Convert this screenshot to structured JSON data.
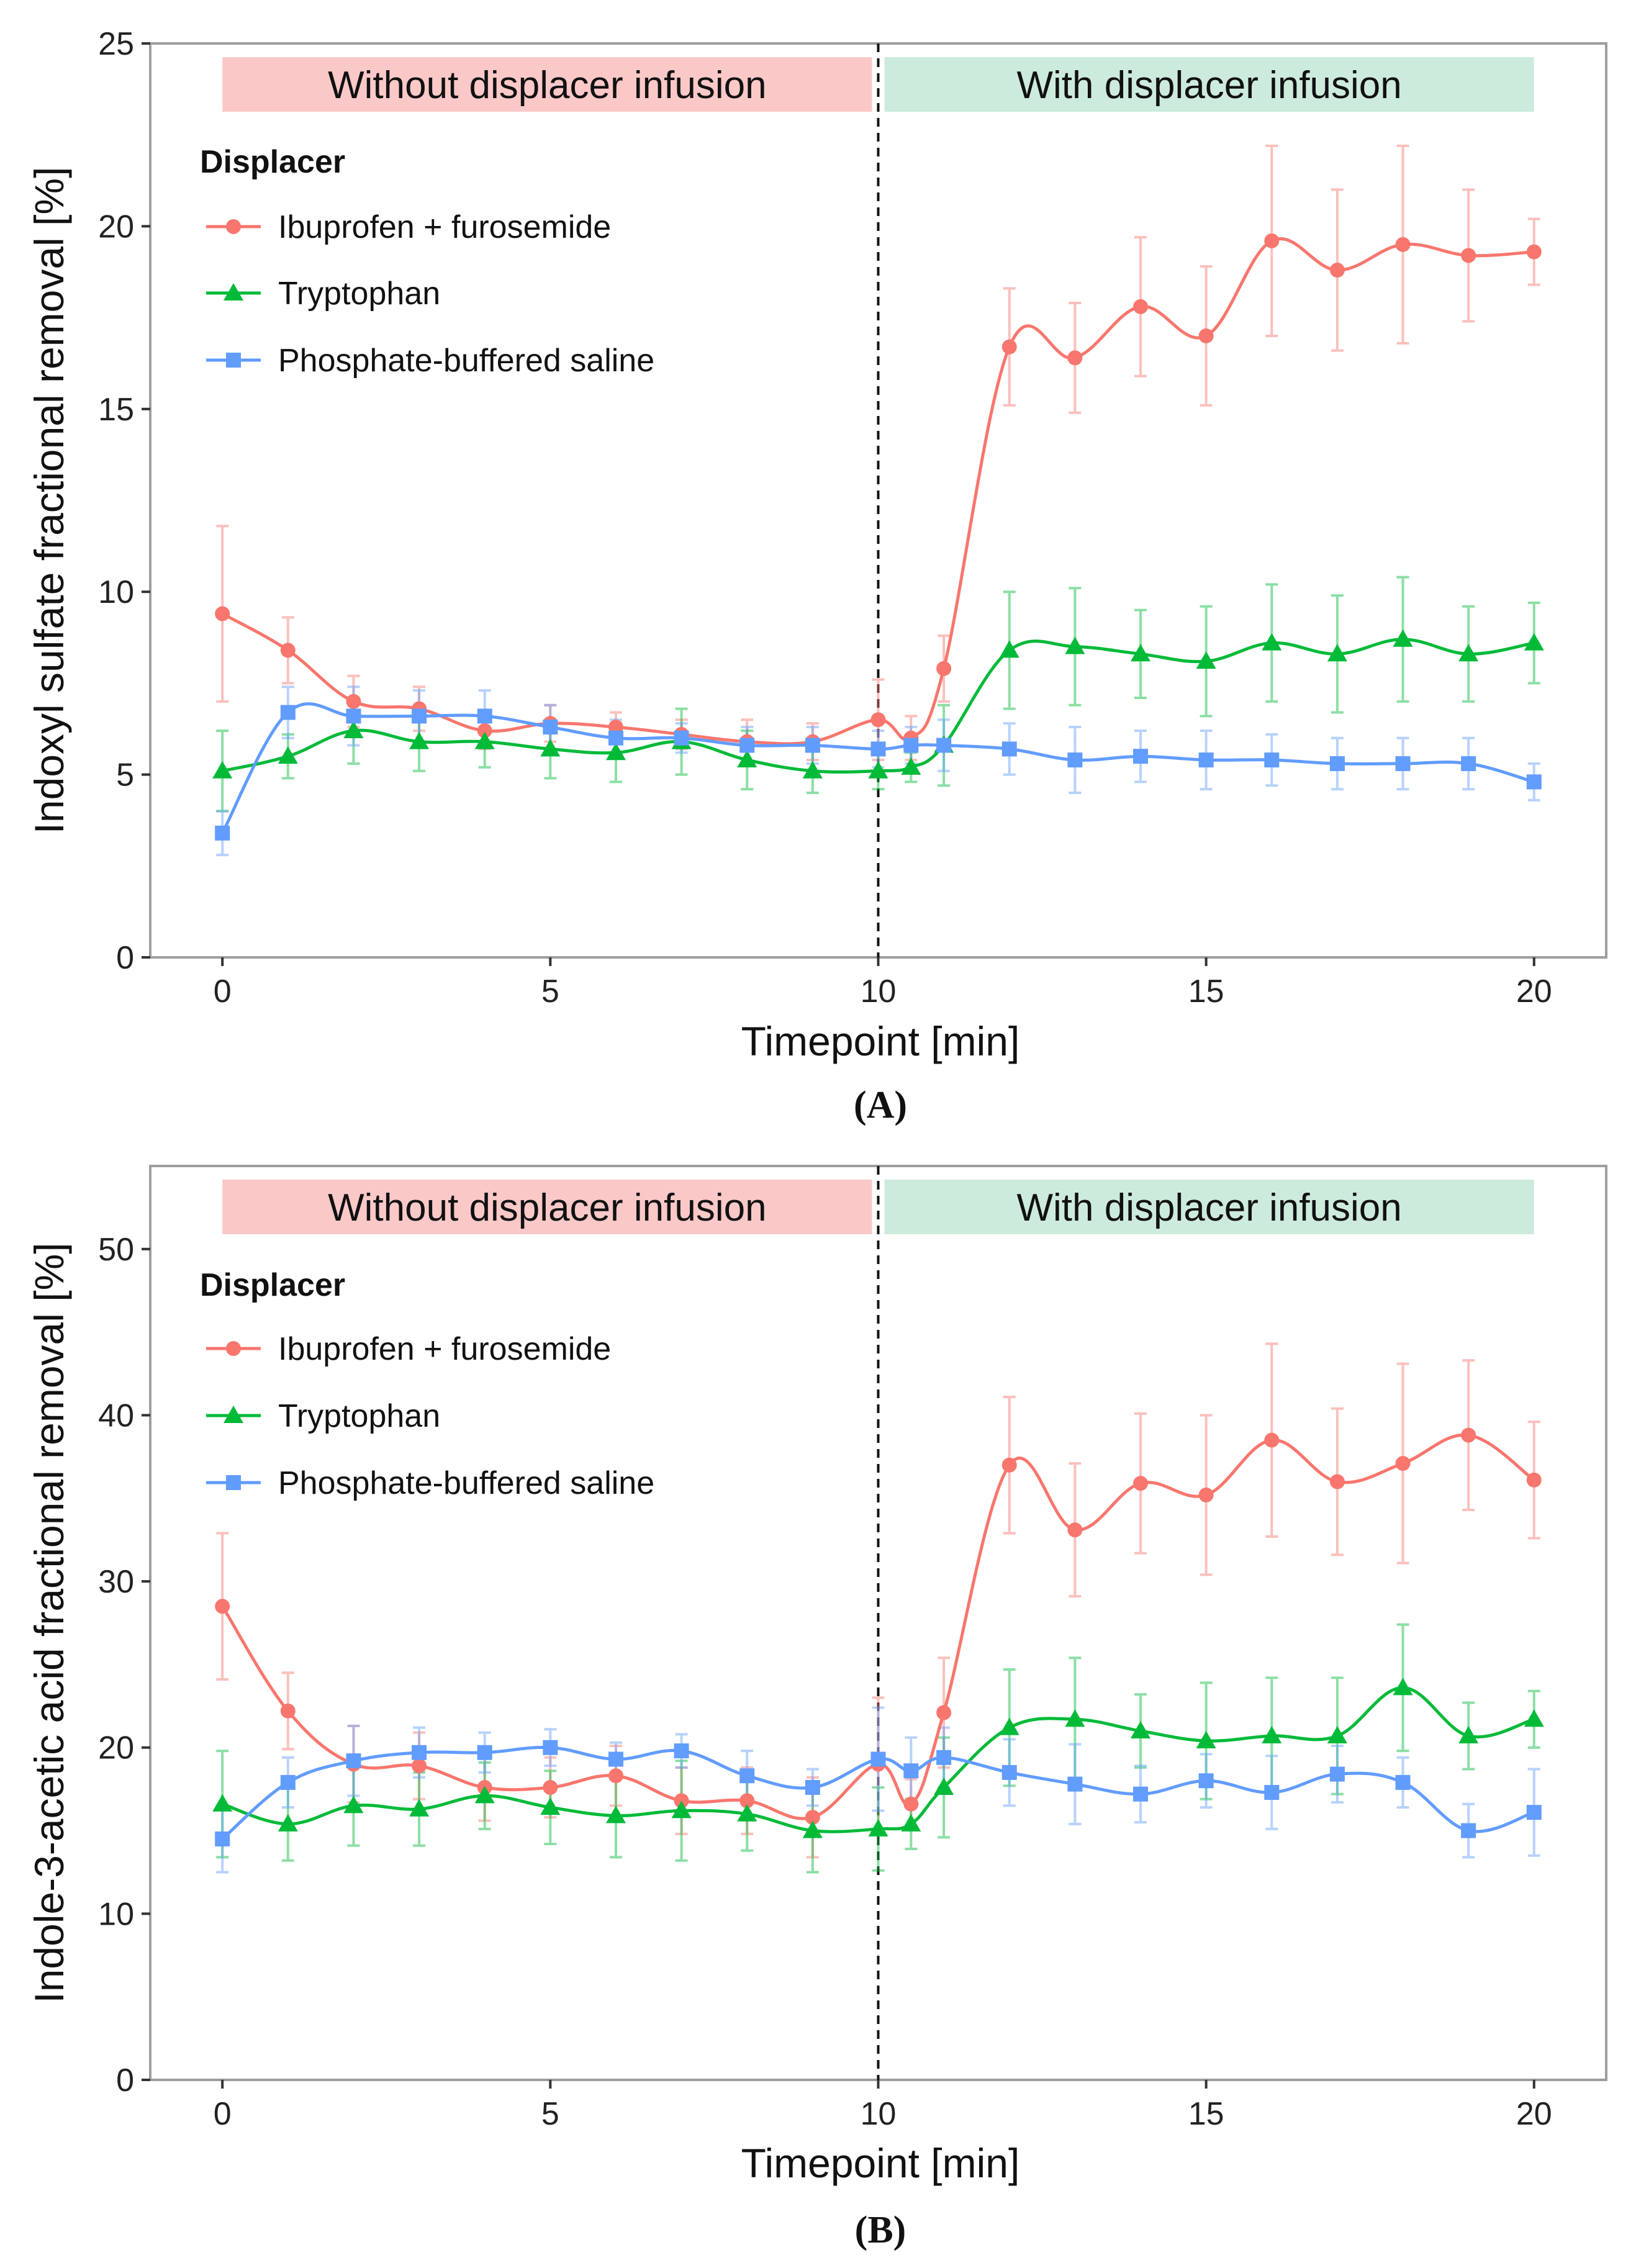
{
  "colors": {
    "ibuprofen": "#F8766D",
    "tryptophan": "#00BA38",
    "pbs": "#619CFF",
    "without_band": "#FBC8C8",
    "with_band": "#CDEBDD",
    "axis": "#333333",
    "panel_border": "#9E9E9E"
  },
  "chart_data": [
    {
      "panel": "A",
      "type": "line",
      "caption": "(A)",
      "xlabel": "Timepoint [min]",
      "ylabel": "Indoxyl sulfate fractional removal [%]",
      "xlim": [
        -1.1,
        21.1
      ],
      "ylim": [
        0,
        25
      ],
      "xticks": [
        0,
        5,
        10,
        15,
        20
      ],
      "yticks": [
        0,
        5,
        10,
        15,
        20,
        25
      ],
      "grid": false,
      "divider_x": 10,
      "bands": [
        {
          "label": "Without displacer infusion",
          "x": [
            0,
            10
          ],
          "color_key": "without_band"
        },
        {
          "label": "With displacer infusion",
          "x": [
            10,
            20
          ],
          "color_key": "with_band"
        }
      ],
      "legend": {
        "title": "Displacer",
        "position": "top-left"
      },
      "x": [
        0,
        1,
        2,
        3,
        4,
        5,
        6,
        7,
        8,
        9,
        10,
        10.5,
        11,
        12,
        13,
        14,
        15,
        16,
        17,
        18,
        19,
        20
      ],
      "series": [
        {
          "name": "Ibuprofen + furosemide",
          "marker": "circle",
          "color_key": "ibuprofen",
          "values": [
            9.4,
            8.4,
            7.0,
            6.8,
            6.2,
            6.4,
            6.3,
            6.1,
            5.9,
            5.9,
            6.5,
            6.0,
            7.9,
            16.7,
            16.4,
            17.8,
            17.0,
            19.6,
            18.8,
            19.5,
            19.2,
            19.3
          ],
          "errors": [
            2.4,
            0.9,
            0.7,
            0.6,
            0.5,
            0.5,
            0.4,
            0.4,
            0.6,
            0.5,
            1.1,
            0.6,
            0.9,
            1.6,
            1.5,
            1.9,
            1.9,
            2.6,
            2.2,
            2.7,
            1.8,
            0.9
          ]
        },
        {
          "name": "Tryptophan",
          "marker": "triangle",
          "color_key": "tryptophan",
          "values": [
            5.1,
            5.5,
            6.2,
            5.9,
            5.9,
            5.7,
            5.6,
            5.9,
            5.4,
            5.1,
            5.1,
            5.2,
            5.8,
            8.4,
            8.5,
            8.3,
            8.1,
            8.6,
            8.3,
            8.7,
            8.3,
            8.6
          ],
          "errors": [
            1.1,
            0.6,
            0.9,
            0.8,
            0.7,
            0.8,
            0.8,
            0.9,
            0.8,
            0.6,
            0.5,
            0.4,
            1.1,
            1.6,
            1.6,
            1.2,
            1.5,
            1.6,
            1.6,
            1.7,
            1.3,
            1.1
          ]
        },
        {
          "name": "Phosphate-buffered saline",
          "marker": "square",
          "color_key": "pbs",
          "values": [
            3.4,
            6.7,
            6.6,
            6.6,
            6.6,
            6.3,
            6.0,
            6.0,
            5.8,
            5.8,
            5.7,
            5.8,
            5.8,
            5.7,
            5.4,
            5.5,
            5.4,
            5.4,
            5.3,
            5.3,
            5.3,
            4.8
          ],
          "errors": [
            0.6,
            0.7,
            0.8,
            0.7,
            0.7,
            0.6,
            0.5,
            0.4,
            0.5,
            0.5,
            0.5,
            0.5,
            0.7,
            0.7,
            0.9,
            0.7,
            0.8,
            0.7,
            0.7,
            0.7,
            0.7,
            0.5
          ]
        }
      ]
    },
    {
      "panel": "B",
      "type": "line",
      "caption": "(B)",
      "xlabel": "Timepoint [min]",
      "ylabel": "Indole-3-acetic acid fractional removal [%]",
      "xlim": [
        -1.1,
        21.1
      ],
      "ylim": [
        0,
        55
      ],
      "xticks": [
        0,
        5,
        10,
        15,
        20
      ],
      "yticks": [
        0,
        10,
        20,
        30,
        40,
        50
      ],
      "grid": false,
      "divider_x": 10,
      "bands": [
        {
          "label": "Without displacer infusion",
          "x": [
            0,
            10
          ],
          "color_key": "without_band"
        },
        {
          "label": "With displacer infusion",
          "x": [
            10,
            20
          ],
          "color_key": "with_band"
        }
      ],
      "legend": {
        "title": "Displacer",
        "position": "top-left"
      },
      "x": [
        0,
        1,
        2,
        3,
        4,
        5,
        6,
        7,
        8,
        9,
        10,
        10.5,
        11,
        12,
        13,
        14,
        15,
        16,
        17,
        18,
        19,
        20
      ],
      "series": [
        {
          "name": "Ibuprofen + furosemide",
          "marker": "circle",
          "color_key": "ibuprofen",
          "values": [
            28.5,
            22.2,
            19.0,
            18.9,
            17.6,
            17.6,
            18.3,
            16.8,
            16.8,
            15.8,
            19.0,
            16.6,
            22.1,
            37.0,
            33.1,
            35.9,
            35.2,
            38.5,
            36.0,
            37.1,
            38.8,
            36.1
          ],
          "errors": [
            4.4,
            2.3,
            2.3,
            2.0,
            2.0,
            1.8,
            1.8,
            2.0,
            2.0,
            2.4,
            4.0,
            1.5,
            3.3,
            4.1,
            4.0,
            4.2,
            4.8,
            5.8,
            4.4,
            6.0,
            4.5,
            3.5
          ]
        },
        {
          "name": "Tryptophan",
          "marker": "triangle",
          "color_key": "tryptophan",
          "values": [
            16.6,
            15.4,
            16.5,
            16.3,
            17.1,
            16.4,
            15.9,
            16.2,
            16.0,
            15.0,
            15.1,
            15.4,
            17.6,
            21.2,
            21.7,
            21.0,
            20.4,
            20.7,
            20.7,
            23.6,
            20.7,
            21.7
          ],
          "errors": [
            3.2,
            2.2,
            2.4,
            2.2,
            2.0,
            2.2,
            2.5,
            3.0,
            2.2,
            2.5,
            2.5,
            1.5,
            3.0,
            3.5,
            3.7,
            2.2,
            3.5,
            3.5,
            3.5,
            3.8,
            2.0,
            1.7
          ]
        },
        {
          "name": "Phosphate-buffered saline",
          "marker": "square",
          "color_key": "pbs",
          "values": [
            14.5,
            17.9,
            19.2,
            19.7,
            19.7,
            20.0,
            19.3,
            19.8,
            18.3,
            17.6,
            19.3,
            18.6,
            19.4,
            18.5,
            17.8,
            17.2,
            18.0,
            17.3,
            18.4,
            17.9,
            15.0,
            16.1
          ],
          "errors": [
            2.0,
            1.5,
            2.1,
            1.5,
            1.2,
            1.1,
            1.0,
            1.0,
            1.5,
            1.1,
            3.1,
            2.0,
            1.8,
            2.0,
            2.4,
            1.7,
            1.6,
            2.2,
            1.7,
            1.5,
            1.6,
            2.6
          ]
        }
      ]
    }
  ]
}
